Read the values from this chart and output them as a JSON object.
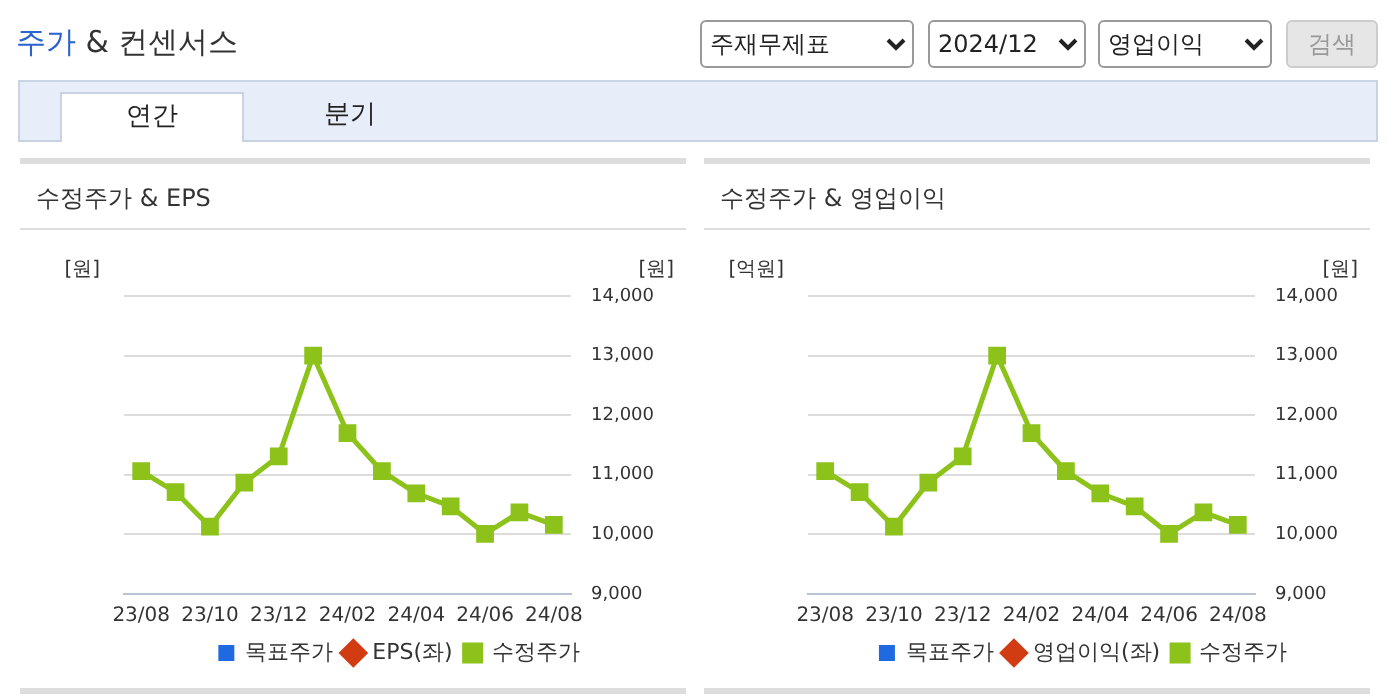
{
  "chart_data": [
    {
      "type": "line",
      "title": "수정주가 & EPS",
      "annotations": [
        "주가 & 컨센서스",
        "주재무제표",
        "2024/12",
        "영업이익",
        "검색",
        "연간",
        "분기"
      ],
      "categories": [
        "23/08",
        null,
        "23/10",
        null,
        "23/12",
        null,
        "24/02",
        null,
        "24/04",
        null,
        "24/06",
        null,
        "24/08"
      ],
      "ylabel": "[원]",
      "y2label": "[원]",
      "y2lim": [
        9000,
        14000
      ],
      "y2ticks": [
        {
          "value": 9000,
          "label": "9,000"
        },
        {
          "value": 10000,
          "label": "10,000"
        },
        {
          "value": 11000,
          "label": "11,000"
        },
        {
          "value": 12000,
          "label": "12,000"
        },
        {
          "value": 13000,
          "label": "13,000"
        },
        {
          "value": 14000,
          "label": "14,000"
        }
      ],
      "grid": "y",
      "legend": "bottom",
      "series": [
        {
          "name": "목표주가",
          "type": "bar",
          "color": "#1f6ae0",
          "values": [
            null,
            null,
            null,
            null,
            null,
            null,
            null,
            null,
            null,
            null,
            null,
            null,
            null
          ]
        },
        {
          "name": "EPS(좌)",
          "marker": "diamond",
          "color": "#d23c12",
          "values": [
            null,
            null,
            null,
            null,
            null,
            null,
            null,
            null,
            null,
            null,
            null,
            null,
            null
          ]
        },
        {
          "name": "수정주가",
          "marker": "square",
          "axis": "y2",
          "color": "#8cc21a",
          "values": [
            11060,
            10710,
            10130,
            10870,
            11310,
            13000,
            11700,
            11060,
            10690,
            10470,
            10010,
            10370,
            10160
          ]
        }
      ]
    },
    {
      "type": "line",
      "title": "수정주가 & 영업이익",
      "categories": [
        "23/08",
        null,
        "23/10",
        null,
        "23/12",
        null,
        "24/02",
        null,
        "24/04",
        null,
        "24/06",
        null,
        "24/08"
      ],
      "ylabel": "[억원]",
      "y2label": "[원]",
      "y2lim": [
        9000,
        14000
      ],
      "y2ticks": [
        {
          "value": 9000,
          "label": "9,000"
        },
        {
          "value": 10000,
          "label": "10,000"
        },
        {
          "value": 11000,
          "label": "11,000"
        },
        {
          "value": 12000,
          "label": "12,000"
        },
        {
          "value": 13000,
          "label": "13,000"
        },
        {
          "value": 14000,
          "label": "14,000"
        }
      ],
      "grid": "y",
      "legend": "bottom",
      "series": [
        {
          "name": "목표주가",
          "type": "bar",
          "color": "#1f6ae0",
          "values": [
            null,
            null,
            null,
            null,
            null,
            null,
            null,
            null,
            null,
            null,
            null,
            null,
            null
          ]
        },
        {
          "name": "영업이익(좌)",
          "marker": "diamond",
          "color": "#d23c12",
          "values": [
            null,
            null,
            null,
            null,
            null,
            null,
            null,
            null,
            null,
            null,
            null,
            null,
            null
          ]
        },
        {
          "name": "수정주가",
          "marker": "square",
          "axis": "y2",
          "color": "#8cc21a",
          "values": [
            11060,
            10710,
            10130,
            10870,
            11310,
            13000,
            11700,
            11060,
            10690,
            10470,
            10010,
            10370,
            10160
          ]
        }
      ]
    }
  ]
}
